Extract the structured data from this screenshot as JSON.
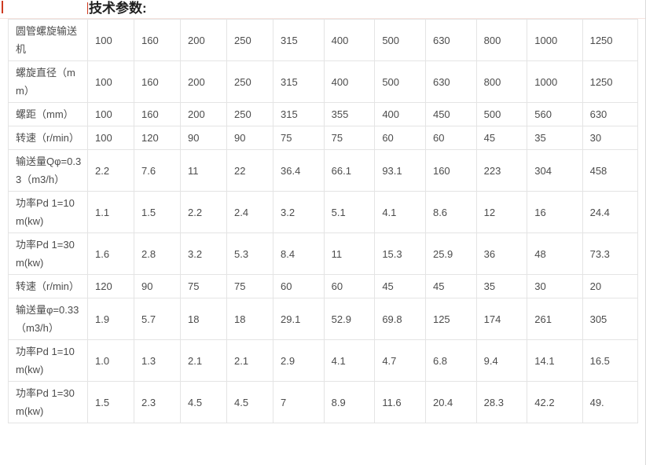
{
  "page": {
    "title": "技术参数:",
    "accent_color": "#ce3a20"
  },
  "table": {
    "rows": [
      {
        "label": "圆管螺旋输送机",
        "values": [
          "100",
          "160",
          "200",
          "250",
          "315",
          "400",
          "500",
          "630",
          "800",
          "1000",
          "1250"
        ]
      },
      {
        "label": "螺旋直径（mm）",
        "values": [
          "100",
          "160",
          "200",
          "250",
          "315",
          "400",
          "500",
          "630",
          "800",
          "1000",
          "1250"
        ]
      },
      {
        "label": "螺距（mm）",
        "values": [
          "100",
          "160",
          "200",
          "250",
          "315",
          "355",
          "400",
          "450",
          "500",
          "560",
          "630"
        ]
      },
      {
        "label": "转速（r/min）",
        "values": [
          "100",
          "120",
          "90",
          "90",
          "75",
          "75",
          "60",
          "60",
          "45",
          "35",
          "30"
        ]
      },
      {
        "label": "输送量Qφ=0.33（m3/h）",
        "values": [
          "2.2",
          "7.6",
          "11",
          "22",
          "36.4",
          "66.1",
          "93.1",
          "160",
          "223",
          "304",
          "458"
        ]
      },
      {
        "label": "功率Pd 1=10 m(kw)",
        "values": [
          "1.1",
          "1.5",
          "2.2",
          "2.4",
          "3.2",
          "5.1",
          "4.1",
          "8.6",
          "12",
          "16",
          "24.4"
        ]
      },
      {
        "label": "功率Pd 1=30 m(kw)",
        "values": [
          "1.6",
          "2.8",
          "3.2",
          "5.3",
          "8.4",
          "11",
          "15.3",
          "25.9",
          "36",
          "48",
          "73.3"
        ]
      },
      {
        "label": "转速（r/min）",
        "values": [
          "120",
          "90",
          "75",
          "75",
          "60",
          "60",
          "45",
          "45",
          "35",
          "30",
          "20"
        ]
      },
      {
        "label": "输送量φ=0.33（m3/h）",
        "values": [
          "1.9",
          "5.7",
          "18",
          "18",
          "29.1",
          "52.9",
          "69.8",
          "125",
          "174",
          "261",
          "305"
        ]
      },
      {
        "label": "功率Pd 1=10 m(kw)",
        "values": [
          "1.0",
          "1.3",
          "2.1",
          "2.1",
          "2.9",
          "4.1",
          "4.7",
          "6.8",
          "9.4",
          "14.1",
          "16.5"
        ]
      },
      {
        "label": "功率Pd 1=30 m(kw)",
        "values": [
          "1.5",
          "2.3",
          "4.5",
          "4.5",
          "7",
          "8.9",
          "11.6",
          "20.4",
          "28.3",
          "42.2",
          "49."
        ]
      }
    ]
  }
}
